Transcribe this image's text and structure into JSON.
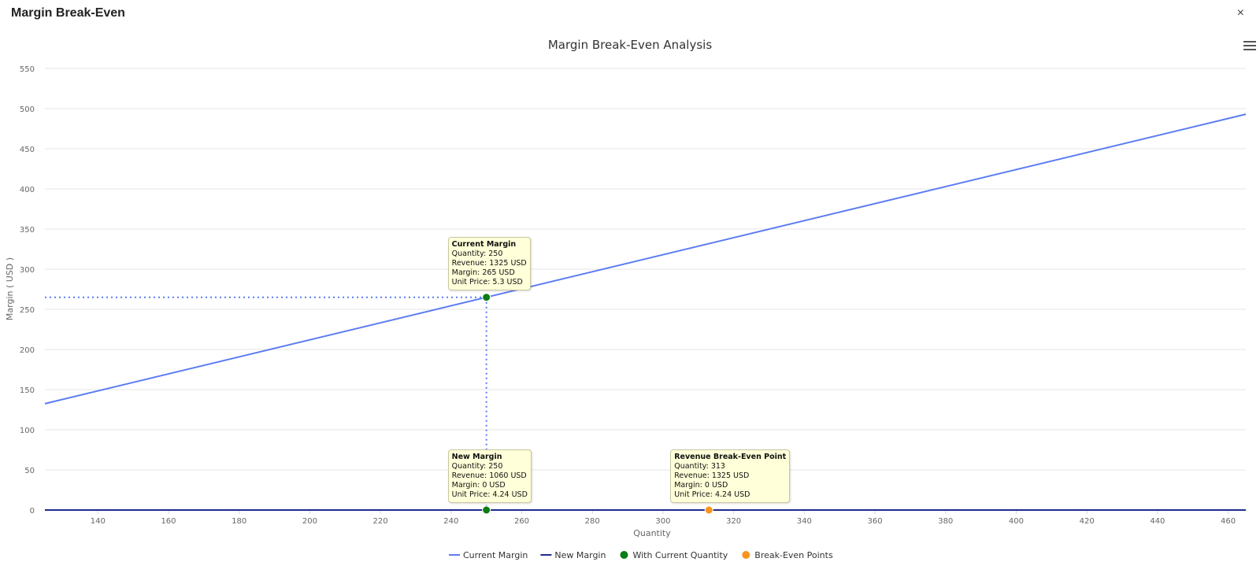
{
  "window": {
    "title": "Margin Break-Even",
    "close_label": "×"
  },
  "menu": {
    "icon": "hamburger-menu-icon"
  },
  "chart_data": {
    "type": "line",
    "title": "Margin Break-Even Analysis",
    "xlabel": "Quantity",
    "ylabel": "Margin ( USD )",
    "xlim": [
      125,
      465
    ],
    "ylim": [
      0,
      550
    ],
    "x_ticks": [
      140,
      160,
      180,
      200,
      220,
      240,
      260,
      280,
      300,
      320,
      340,
      360,
      380,
      400,
      420,
      440,
      460
    ],
    "y_ticks": [
      0,
      50,
      100,
      150,
      200,
      250,
      300,
      350,
      400,
      450,
      500,
      550
    ],
    "grid": true,
    "legend_position": "bottom-center",
    "series": [
      {
        "name": "Current Margin",
        "kind": "line",
        "color": "#5b7cf2",
        "x": [
          125,
          465
        ],
        "y": [
          132.5,
          493
        ]
      },
      {
        "name": "New Margin",
        "kind": "line",
        "color": "#1f2b8f",
        "x": [
          125,
          465
        ],
        "y": [
          0,
          0
        ]
      },
      {
        "name": "With Current Quantity",
        "kind": "marker",
        "color": "#0a7d14",
        "points": [
          [
            250,
            265
          ],
          [
            250,
            0
          ]
        ]
      },
      {
        "name": "Break-Even Points",
        "kind": "marker",
        "color": "#f7941d",
        "points": [
          [
            313,
            0
          ]
        ]
      }
    ],
    "guides": [
      {
        "from": [
          125,
          265
        ],
        "to": [
          250,
          265
        ],
        "color": "#5b7cf2"
      },
      {
        "from": [
          250,
          265
        ],
        "to": [
          250,
          0
        ],
        "color": "#5b7cf2"
      }
    ],
    "tooltips": [
      {
        "anchor": [
          250,
          265
        ],
        "title": "Current Margin",
        "lines": [
          "Quantity: 250",
          "Revenue: 1325 USD",
          "Margin: 265 USD",
          "Unit Price: 5.3 USD"
        ]
      },
      {
        "anchor": [
          250,
          0
        ],
        "title": "New Margin",
        "lines": [
          "Quantity: 250",
          "Revenue: 1060 USD",
          "Margin: 0 USD",
          "Unit Price: 4.24 USD"
        ]
      },
      {
        "anchor": [
          313,
          0
        ],
        "title": "Revenue Break-Even Point",
        "lines": [
          "Quantity: 313",
          "Revenue: 1325 USD",
          "Margin: 0 USD",
          "Unit Price: 4.24 USD"
        ]
      }
    ]
  }
}
